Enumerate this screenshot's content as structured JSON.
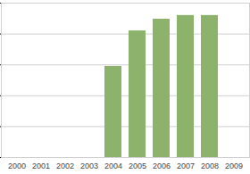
{
  "chart_data": {
    "type": "bar",
    "categories": [
      "2000",
      "2001",
      "2002",
      "2003",
      "2004",
      "2005",
      "2006",
      "2007",
      "2008",
      "2009"
    ],
    "values": [
      null,
      null,
      null,
      null,
      2.95,
      4.1,
      4.48,
      4.6,
      4.6,
      null
    ],
    "color": "#8cb26b",
    "ylim": [
      0,
      5
    ],
    "yticks": [
      0,
      1,
      2,
      3,
      4,
      5
    ],
    "grid": true,
    "tick_labels": "x"
  }
}
